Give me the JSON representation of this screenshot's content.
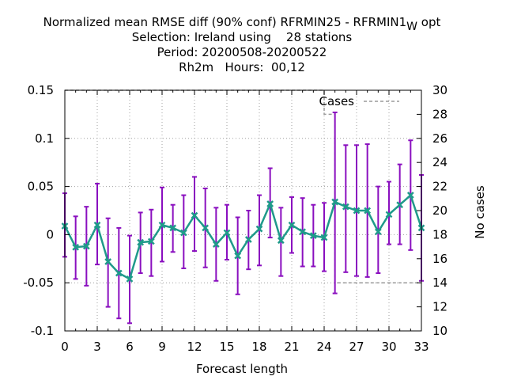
{
  "chart_data": {
    "type": "line",
    "title_lines": [
      "Normalized mean RMSE diff (90% conf) RFRMIN25 - RFRMIN1",
      "Selection: Ireland using    28 stations",
      "Period: 20200508-20200522",
      "Rh2m   Hours:  00,12"
    ],
    "title_subscript": "W",
    "title_suffix": " opt",
    "xlabel": "Forecast length",
    "ylabel_right": "No cases",
    "xlim": [
      0,
      33
    ],
    "ylim": [
      -0.1,
      0.15
    ],
    "y2lim": [
      10,
      30
    ],
    "x_ticks": [
      "0",
      "3",
      "6",
      "9",
      "12",
      "15",
      "18",
      "21",
      "24",
      "27",
      "30",
      "33"
    ],
    "y_ticks": [
      "-0.1",
      "-0.05",
      "0",
      "0.05",
      "0.1",
      "0.15"
    ],
    "y2_ticks": [
      "10",
      "12",
      "14",
      "16",
      "18",
      "20",
      "22",
      "24",
      "26",
      "28",
      "30"
    ],
    "grid": true,
    "legend_position": "top-right",
    "legend": "Cases",
    "series": {
      "x": [
        0,
        1,
        2,
        3,
        4,
        5,
        6,
        7,
        8,
        9,
        10,
        11,
        12,
        13,
        14,
        15,
        16,
        17,
        18,
        19,
        20,
        21,
        22,
        23,
        24,
        25,
        26,
        27,
        28,
        29,
        30,
        31,
        32,
        33
      ],
      "mean": [
        0.009,
        -0.013,
        -0.012,
        0.01,
        -0.028,
        -0.04,
        -0.046,
        -0.008,
        -0.007,
        0.01,
        0.007,
        0.002,
        0.02,
        0.007,
        -0.01,
        0.002,
        -0.022,
        -0.005,
        0.006,
        0.032,
        -0.006,
        0.01,
        0.003,
        -0.001,
        -0.003,
        0.034,
        0.029,
        0.025,
        0.025,
        0.003,
        0.021,
        0.031,
        0.041,
        0.007
      ],
      "lower": [
        -0.023,
        -0.046,
        -0.053,
        -0.031,
        -0.075,
        -0.087,
        -0.092,
        -0.04,
        -0.043,
        -0.028,
        -0.018,
        -0.035,
        -0.017,
        -0.034,
        -0.048,
        -0.026,
        -0.062,
        -0.036,
        -0.032,
        -0.003,
        -0.043,
        -0.019,
        -0.033,
        -0.033,
        -0.038,
        -0.061,
        -0.039,
        -0.043,
        -0.044,
        -0.04,
        -0.01,
        -0.01,
        -0.016,
        -0.048
      ],
      "upper": [
        0.043,
        0.019,
        0.029,
        0.053,
        0.017,
        0.007,
        -0.001,
        0.023,
        0.026,
        0.049,
        0.031,
        0.041,
        0.06,
        0.048,
        0.028,
        0.031,
        0.018,
        0.025,
        0.041,
        0.069,
        0.028,
        0.039,
        0.038,
        0.031,
        0.033,
        0.127,
        0.093,
        0.093,
        0.094,
        0.05,
        0.055,
        0.073,
        0.098,
        0.062
      ]
    },
    "cases": {
      "x": [
        0,
        24,
        24,
        25,
        25,
        33
      ],
      "values": [
        30,
        30,
        28,
        28,
        14,
        14
      ]
    }
  }
}
